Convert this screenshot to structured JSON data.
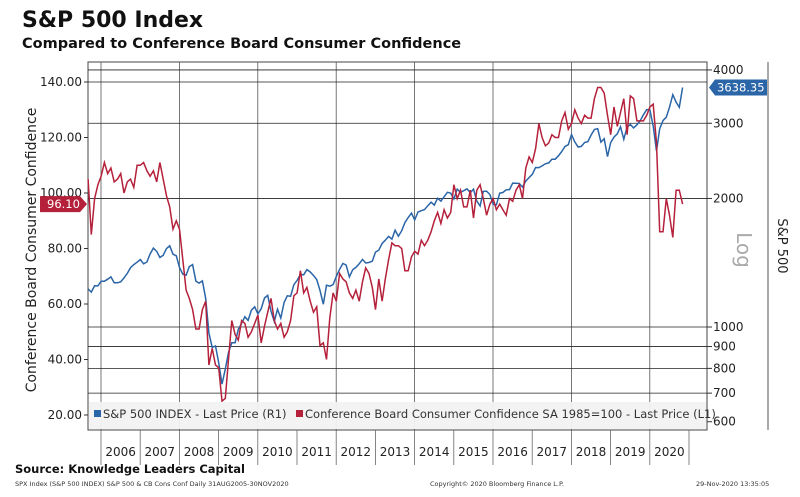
{
  "chart_data": {
    "type": "line",
    "title": "S&P 500 Index",
    "subtitle": "Compared to Conference Board Consumer Confidence",
    "left_axis": {
      "label": "Conference Board Consumer Confidence",
      "ticks": [
        "20.00",
        "40.00",
        "60.00",
        "80.00",
        "100.00",
        "120.00",
        "140.00"
      ],
      "tick_values": [
        20,
        40,
        60,
        80,
        100,
        120,
        140
      ],
      "range": [
        15,
        145
      ]
    },
    "right_axis": {
      "label": "S&P 500",
      "scale_label": "Log",
      "ticks": [
        "600",
        "700",
        "800",
        "900",
        "1000",
        "2000",
        "3000",
        "4000"
      ],
      "tick_values": [
        600,
        700,
        800,
        900,
        1000,
        2000,
        3000,
        4000
      ],
      "range": [
        580,
        4200
      ]
    },
    "x_ticks": [
      "2006",
      "2007",
      "2008",
      "2009",
      "2010",
      "2011",
      "2012",
      "2013",
      "2014",
      "2015",
      "2016",
      "2017",
      "2018",
      "2019",
      "2020"
    ],
    "start": 2005.67,
    "step_months": 1,
    "series": [
      {
        "name": "S&P 500 INDEX - Last Price (R1)",
        "axis": "right",
        "color": "#2a65a8",
        "last_label": "3638.35",
        "values": [
          1228,
          1207,
          1249,
          1248,
          1280,
          1280,
          1294,
          1310,
          1270,
          1270,
          1276,
          1303,
          1335,
          1377,
          1400,
          1418,
          1438,
          1406,
          1420,
          1482,
          1530,
          1503,
          1455,
          1473,
          1526,
          1549,
          1481,
          1468,
          1378,
          1330,
          1322,
          1385,
          1400,
          1280,
          1267,
          1282,
          1166,
          968,
          896,
          903,
          825,
          735,
          797,
          872,
          919,
          919,
          987,
          1020,
          1057,
          1036,
          1095,
          1115,
          1073,
          1104,
          1169,
          1186,
          1089,
          1030,
          1101,
          1049,
          1141,
          1183,
          1180,
          1257,
          1286,
          1327,
          1325,
          1363,
          1345,
          1320,
          1292,
          1218,
          1131,
          1253,
          1246,
          1257,
          1312,
          1365,
          1408,
          1397,
          1310,
          1362,
          1379,
          1406,
          1440,
          1412,
          1416,
          1426,
          1498,
          1514,
          1569,
          1597,
          1630,
          1606,
          1685,
          1632,
          1681,
          1756,
          1805,
          1848,
          1782,
          1859,
          1872,
          1883,
          1923,
          1960,
          1930,
          2003,
          1972,
          2018,
          2067,
          2058,
          1994,
          2104,
          2067,
          2085,
          2107,
          2063,
          2103,
          1972,
          1920,
          2079,
          2080,
          2043,
          1940,
          1932,
          2059,
          2065,
          2096,
          2098,
          2173,
          2170,
          2168,
          2126,
          2198,
          2238,
          2278,
          2363,
          2362,
          2384,
          2411,
          2423,
          2470,
          2471,
          2519,
          2575,
          2647,
          2673,
          2823,
          2713,
          2640,
          2648,
          2705,
          2718,
          2816,
          2901,
          2913,
          2711,
          2760,
          2506,
          2704,
          2784,
          2834,
          2945,
          2752,
          2941,
          2980,
          2926,
          2976,
          3037,
          3140,
          3230,
          3225,
          2954,
          2584,
          2912,
          3044,
          3100,
          3271,
          3500,
          3363,
          3269,
          3638
        ]
      },
      {
        "name": "Conference Board Consumer Confidence SA 1985=100 - Last Price (L1)",
        "axis": "left",
        "color": "#b5203a",
        "last_label": "96.10",
        "values": [
          105,
          85,
          98,
          103,
          106,
          111,
          107,
          109,
          104,
          105,
          107,
          100,
          104,
          105,
          102,
          110,
          110,
          111,
          108,
          106,
          108,
          104,
          111,
          105,
          99,
          95,
          87,
          90,
          87,
          76,
          65,
          62,
          58,
          51,
          51,
          58,
          61,
          38,
          44,
          38,
          37,
          25,
          26,
          40,
          54,
          49,
          47,
          54,
          53,
          48,
          50,
          53,
          56,
          46,
          52,
          57,
          62,
          54,
          51,
          53,
          48,
          50,
          54,
          63,
          64,
          72,
          64,
          66,
          61,
          57,
          59,
          45,
          46,
          40,
          55,
          64,
          61,
          71,
          69,
          68,
          64,
          62,
          65,
          61,
          68,
          73,
          71,
          66,
          58,
          69,
          61,
          69,
          76,
          82,
          81,
          81,
          80,
          72,
          72,
          77,
          79,
          78,
          83,
          81,
          83,
          86,
          90,
          93,
          89,
          94,
          91,
          93,
          103,
          98,
          101,
          95,
          95,
          101,
          91,
          101,
          103,
          98,
          92,
          96,
          98,
          94,
          96,
          94,
          92,
          98,
          97,
          101,
          103,
          98,
          109,
          113,
          111,
          116,
          125,
          120,
          117,
          118,
          121,
          120,
          120,
          126,
          129,
          123,
          125,
          130,
          127,
          125,
          128,
          127,
          127,
          134,
          138,
          138,
          136,
          128,
          121,
          131,
          124,
          129,
          134,
          121,
          135,
          134,
          126,
          126,
          126,
          128,
          131,
          132,
          118,
          86,
          86,
          98,
          92,
          84,
          101,
          101,
          96
        ]
      }
    ],
    "legend_placement": "bottom"
  },
  "footer": {
    "source": "Source: Knowledge Leaders Capital",
    "left": "SPX Index (S&P 500 INDEX) S&P 500 & CB Cons Conf  Daily 31AUG2005-30NOV2020",
    "center": "Copyright© 2020 Bloomberg Finance L.P.",
    "right": "29-Nov-2020 13:35:05"
  }
}
